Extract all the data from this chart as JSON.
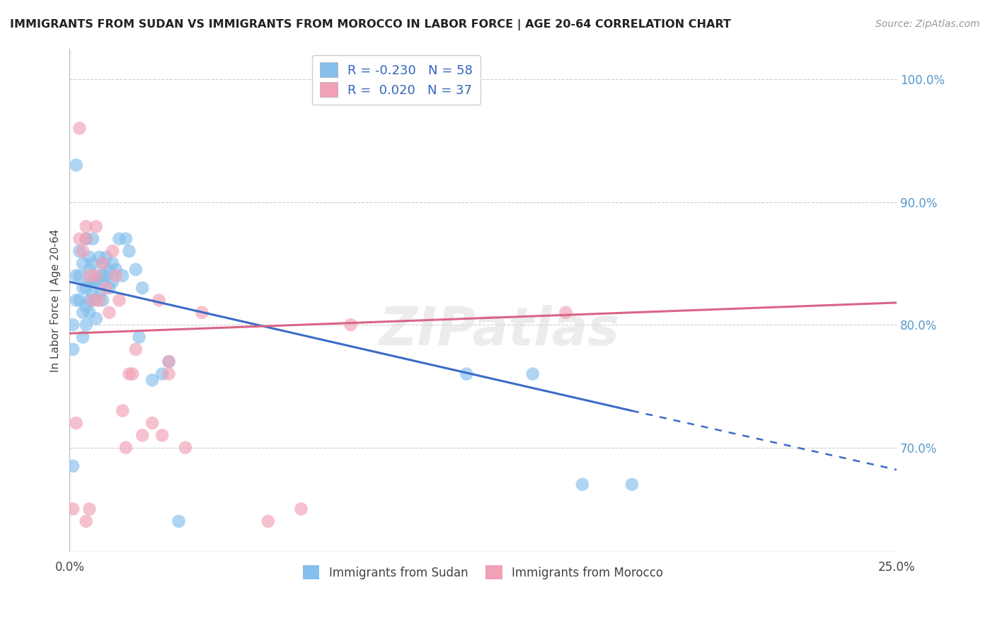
{
  "title": "IMMIGRANTS FROM SUDAN VS IMMIGRANTS FROM MOROCCO IN LABOR FORCE | AGE 20-64 CORRELATION CHART",
  "source": "Source: ZipAtlas.com",
  "ylabel": "In Labor Force | Age 20-64",
  "xlim": [
    0.0,
    0.25
  ],
  "ylim": [
    0.615,
    1.025
  ],
  "xticks": [
    0.0,
    0.05,
    0.1,
    0.15,
    0.2,
    0.25
  ],
  "xtick_labels": [
    "0.0%",
    "",
    "",
    "",
    "",
    "25.0%"
  ],
  "ytick_labels_right": [
    "100.0%",
    "90.0%",
    "80.0%",
    "70.0%"
  ],
  "ytick_values_right": [
    1.0,
    0.9,
    0.8,
    0.7
  ],
  "sudan_R": -0.23,
  "sudan_N": 58,
  "morocco_R": 0.02,
  "morocco_N": 37,
  "sudan_color": "#85BFEC",
  "morocco_color": "#F2A0B5",
  "sudan_line_color": "#3B6CC7",
  "morocco_line_color": "#D96585",
  "watermark": "ZIPatlas",
  "sudan_line_x0": 0.0,
  "sudan_line_y0": 0.835,
  "sudan_line_x1": 0.17,
  "sudan_line_y1": 0.73,
  "sudan_line_dash_x0": 0.17,
  "sudan_line_dash_y0": 0.73,
  "sudan_line_dash_x1": 0.25,
  "sudan_line_dash_y1": 0.682,
  "morocco_line_x0": 0.0,
  "morocco_line_y0": 0.793,
  "morocco_line_x1": 0.25,
  "morocco_line_y1": 0.818,
  "sudan_x": [
    0.001,
    0.001,
    0.002,
    0.002,
    0.002,
    0.003,
    0.003,
    0.003,
    0.004,
    0.004,
    0.004,
    0.004,
    0.005,
    0.005,
    0.005,
    0.005,
    0.006,
    0.006,
    0.006,
    0.006,
    0.006,
    0.007,
    0.007,
    0.007,
    0.007,
    0.008,
    0.008,
    0.008,
    0.009,
    0.009,
    0.009,
    0.01,
    0.01,
    0.01,
    0.01,
    0.011,
    0.011,
    0.012,
    0.012,
    0.013,
    0.013,
    0.014,
    0.015,
    0.016,
    0.017,
    0.018,
    0.02,
    0.021,
    0.022,
    0.025,
    0.028,
    0.03,
    0.033,
    0.12,
    0.14,
    0.155,
    0.17,
    0.001
  ],
  "sudan_y": [
    0.685,
    0.8,
    0.82,
    0.84,
    0.93,
    0.82,
    0.84,
    0.86,
    0.79,
    0.81,
    0.83,
    0.85,
    0.83,
    0.815,
    0.8,
    0.87,
    0.835,
    0.82,
    0.81,
    0.855,
    0.845,
    0.825,
    0.85,
    0.835,
    0.87,
    0.835,
    0.82,
    0.805,
    0.84,
    0.825,
    0.855,
    0.85,
    0.835,
    0.82,
    0.84,
    0.855,
    0.84,
    0.845,
    0.83,
    0.85,
    0.835,
    0.845,
    0.87,
    0.84,
    0.87,
    0.86,
    0.845,
    0.79,
    0.83,
    0.755,
    0.76,
    0.77,
    0.64,
    0.76,
    0.76,
    0.67,
    0.67,
    0.78
  ],
  "morocco_x": [
    0.001,
    0.002,
    0.003,
    0.004,
    0.005,
    0.005,
    0.006,
    0.007,
    0.008,
    0.008,
    0.009,
    0.01,
    0.011,
    0.012,
    0.013,
    0.014,
    0.015,
    0.016,
    0.017,
    0.018,
    0.019,
    0.02,
    0.022,
    0.025,
    0.027,
    0.028,
    0.03,
    0.03,
    0.035,
    0.04,
    0.06,
    0.07,
    0.085,
    0.15,
    0.005,
    0.006,
    0.003
  ],
  "morocco_y": [
    0.65,
    0.72,
    0.87,
    0.86,
    0.87,
    0.88,
    0.84,
    0.82,
    0.88,
    0.84,
    0.82,
    0.85,
    0.83,
    0.81,
    0.86,
    0.84,
    0.82,
    0.73,
    0.7,
    0.76,
    0.76,
    0.78,
    0.71,
    0.72,
    0.82,
    0.71,
    0.77,
    0.76,
    0.7,
    0.81,
    0.64,
    0.65,
    0.8,
    0.81,
    0.64,
    0.65,
    0.96
  ]
}
